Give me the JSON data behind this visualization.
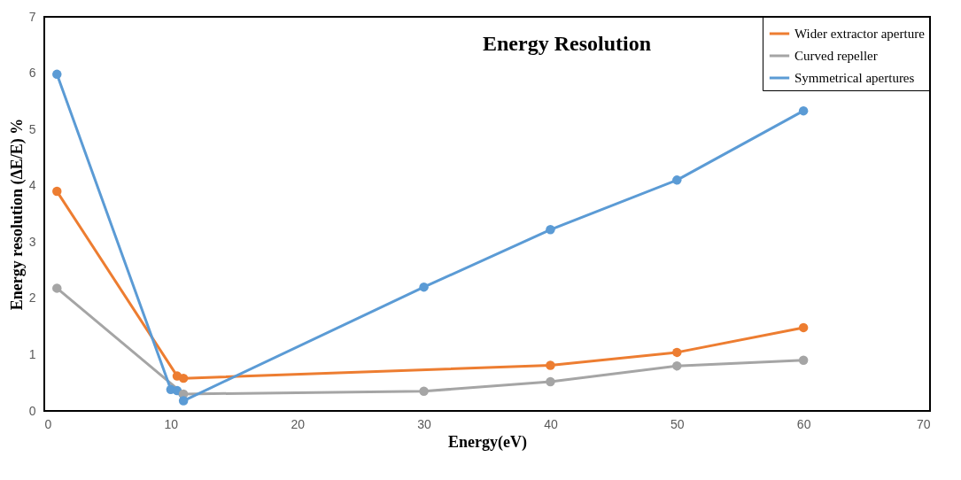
{
  "chart_data": {
    "type": "line",
    "title": "Energy Resolution",
    "xlabel": "Energy(eV)",
    "ylabel": "Energy resolution (ΔE/E) %",
    "xlim": [
      0,
      70
    ],
    "xticks": [
      0,
      10,
      20,
      30,
      40,
      50,
      60,
      70
    ],
    "ylim": [
      0,
      7
    ],
    "yticks": [
      0,
      1,
      2,
      3,
      4,
      5,
      6,
      7
    ],
    "grid": false,
    "legend": "top right",
    "marker": "circle",
    "line_style": "solid",
    "series": [
      {
        "name": "Wider extractor aperture",
        "color": "#ed7d31",
        "x": [
          1,
          10.5,
          11,
          40,
          50,
          60
        ],
        "values": [
          3.9,
          0.62,
          0.58,
          0.81,
          1.04,
          1.48
        ]
      },
      {
        "name": "Curved repeller",
        "color": "#a5a5a5",
        "x": [
          1,
          11,
          30,
          40,
          50,
          60
        ],
        "values": [
          2.18,
          0.3,
          0.35,
          0.52,
          0.8,
          0.9
        ]
      },
      {
        "name": "Symmetrical apertures",
        "color": "#5b9bd5",
        "x": [
          1,
          10,
          10.5,
          11,
          30,
          40,
          50,
          60
        ],
        "values": [
          5.98,
          0.38,
          0.36,
          0.18,
          2.2,
          3.22,
          4.1,
          5.33
        ]
      }
    ]
  }
}
